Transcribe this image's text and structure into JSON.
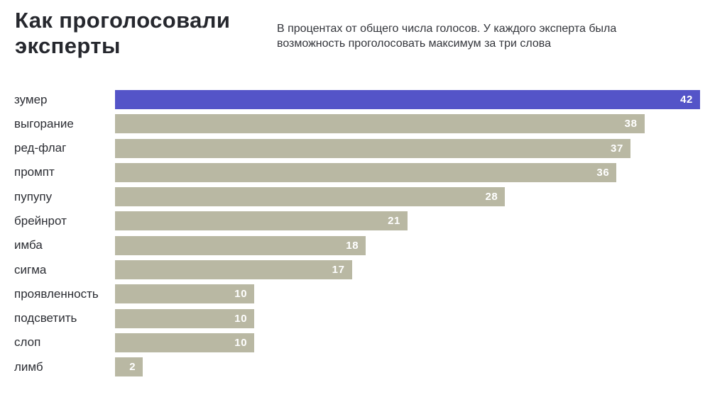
{
  "header": {
    "title": "Как проголосовали эксперты",
    "subtitle": "В процентах от общего числа голосов. У каждого эксперта была возможность проголосовать максимум за три слова"
  },
  "chart_data": {
    "type": "bar",
    "orientation": "horizontal",
    "title": "Как проголосовали эксперты",
    "categories": [
      "зумер",
      "выгорание",
      "ред-флаг",
      "промпт",
      "пупупу",
      "брейнрот",
      "имба",
      "сигма",
      "проявленность",
      "подсветить",
      "слоп",
      "лимб"
    ],
    "values": [
      42,
      38,
      37,
      36,
      28,
      21,
      18,
      17,
      10,
      10,
      10,
      2
    ],
    "value_labels_inside": true,
    "highlight_index": 0,
    "xlim": [
      0,
      42
    ],
    "grid": false,
    "legend": false,
    "colors": {
      "highlight_bar": "#5454c8",
      "default_bar": "#b9b8a3",
      "value_label": "#ffffff",
      "category_label": "#2b2d33"
    }
  }
}
